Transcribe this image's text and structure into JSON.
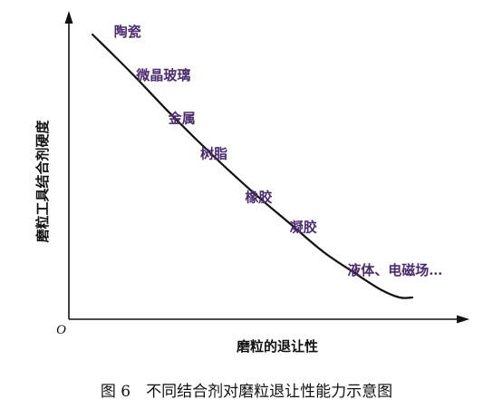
{
  "chart_data": {
    "type": "line",
    "title": "",
    "xlabel": "磨粒的退让性",
    "ylabel": "磨粒工具结合剂硬度",
    "origin_label": "O",
    "xlim": [
      0,
      1
    ],
    "ylim": [
      0,
      1
    ],
    "series": [
      {
        "values_description_free": true,
        "x": [
          0.0,
          0.12,
          0.25,
          0.38,
          0.5,
          0.62,
          0.72,
          0.82,
          0.9,
          0.96,
          1.0
        ],
        "y": [
          1.0,
          0.86,
          0.7,
          0.55,
          0.42,
          0.3,
          0.2,
          0.12,
          0.06,
          0.03,
          0.03
        ]
      }
    ],
    "annotations": [
      {
        "text": "陶瓷",
        "x": 0.05,
        "y": 0.98
      },
      {
        "text": "微晶玻璃",
        "x": 0.12,
        "y": 0.82
      },
      {
        "text": "金属",
        "x": 0.22,
        "y": 0.66
      },
      {
        "text": "树脂",
        "x": 0.32,
        "y": 0.53
      },
      {
        "text": "橡胶",
        "x": 0.46,
        "y": 0.37
      },
      {
        "text": "凝胶",
        "x": 0.6,
        "y": 0.26
      },
      {
        "text": "液体、电磁场…",
        "x": 0.78,
        "y": 0.1
      }
    ]
  },
  "caption": "图 6　不同结合剂对磨粒退让性能力示意图"
}
